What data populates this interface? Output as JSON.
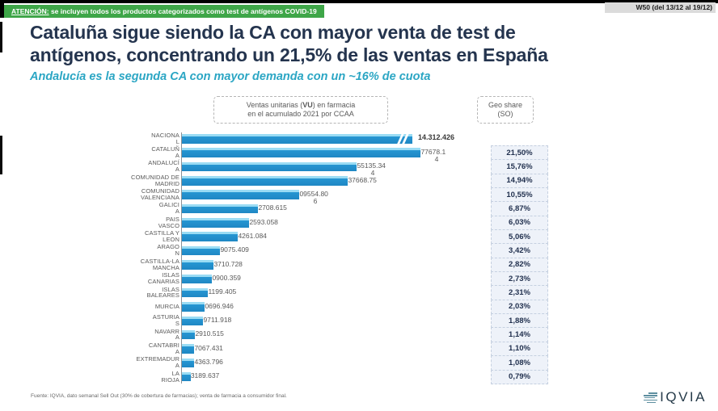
{
  "banner": {
    "prefix": "ATENCIÓN:",
    "text": " se incluyen todos los productos categorizados como test de antígenos COVID-19"
  },
  "week_badge": "W50 (del 13/12 al 19/12)",
  "title": "Cataluña sigue siendo la CA con mayor venta de test de antígenos, concentrando un 21,5% de las ventas en España",
  "subtitle": "Andalucía es la segunda CA con mayor demanda con un ~16% de cuota",
  "vu_box": {
    "line1_pre": "Ventas unitarias (",
    "line1_bold": "VU",
    "line1_post": ") en farmacia",
    "line2": "en el acumulado 2021 por CCAA"
  },
  "geo_box": {
    "line1": "Geo share",
    "line2": "(SO)"
  },
  "footer": {
    "source": "Fuente: IQVIA, dato semanal Sell Out (30% de cobertura de farmacias); venta de farmacia a consumidor final.",
    "logo_text": "IQVIA"
  },
  "colors": {
    "bar_main": "#2696D2",
    "bar_light": "#9ADCF4",
    "banner_green": "#3EA648",
    "subtitle_teal": "#2BA6C4",
    "title_navy": "#24344E",
    "geo_text": "#22314F"
  },
  "chart_data": {
    "type": "bar",
    "orientation": "horizontal",
    "title": "Ventas unitarias (VU) en farmacia en el acumulado 2021 por CCAA",
    "broken_axis_category": "NACIONAL",
    "categories": [
      "NACIONAL",
      "CATALUÑA",
      "ANDALUCÍA",
      "COMUNIDAD DE MADRID",
      "COMUNIDAD VALENCIANA",
      "GALICIA",
      "PAIS VASCO",
      "CASTILLA Y LEON",
      "ARAGON",
      "CASTILLA-LA MANCHA",
      "ISLAS CANARIAS",
      "ISLAS BALEARES",
      "MURCIA",
      "ASTURIAS",
      "NAVARRA",
      "CANTABRIA",
      "EXTREMADURA",
      "LA RIOJA"
    ],
    "values": [
      14312426,
      3077678.14,
      2255135.344,
      2137668.75,
      1509554.806,
      982708.615,
      862593.058,
      724261.084,
      489075.409,
      403710.728,
      390900.359,
      331199.405,
      290696.946,
      269711.918,
      162910.515,
      157067.431,
      154363.796,
      113189.637
    ],
    "label_lines": [
      [
        "NACIONA",
        "L"
      ],
      [
        "CATALUÑ",
        "A"
      ],
      [
        "ANDALUCÍ",
        "A"
      ],
      [
        "COMUNIDAD DE",
        "MADRID"
      ],
      [
        "COMUNIDAD",
        "VALENCIANA"
      ],
      [
        "GALICI",
        "A"
      ],
      [
        "PAIS",
        "VASCO"
      ],
      [
        "CASTILLA Y",
        "LEON"
      ],
      [
        "ARAGO",
        "N"
      ],
      [
        "CASTILLA-LA",
        "MANCHA"
      ],
      [
        "ISLAS",
        "CANARIAS"
      ],
      [
        "ISLAS",
        "BALEARES"
      ],
      [
        "MURCIA"
      ],
      [
        "ASTURIA",
        "S"
      ],
      [
        "NAVARR",
        "A"
      ],
      [
        "CANTABRI",
        "A"
      ],
      [
        "EXTREMADUR",
        "A"
      ],
      [
        "LA",
        "RIOJA"
      ]
    ],
    "value_labels": [
      [
        "14.312.426"
      ],
      [
        "3077678.1",
        "4"
      ],
      [
        "2255135.34",
        "4"
      ],
      [
        "2137668.75"
      ],
      [
        "1509554.80",
        "6"
      ],
      [
        "982708.615"
      ],
      [
        "862593.058"
      ],
      [
        "724261.084"
      ],
      [
        "489075.409"
      ],
      [
        "403710.728"
      ],
      [
        "390900.359"
      ],
      [
        "331199.405"
      ],
      [
        "290696.946"
      ],
      [
        "269711.918"
      ],
      [
        "162910.515"
      ],
      [
        "157067.431"
      ],
      [
        "154363.796"
      ],
      [
        "113189.637"
      ]
    ],
    "geo_share": {
      "label": "Geo share (SO)",
      "categories": [
        "CATALUÑA",
        "ANDALUCÍA",
        "COMUNIDAD DE MADRID",
        "COMUNIDAD VALENCIANA",
        "GALICIA",
        "PAIS VASCO",
        "CASTILLA Y LEON",
        "ARAGON",
        "CASTILLA-LA MANCHA",
        "ISLAS CANARIAS",
        "ISLAS BALEARES",
        "MURCIA",
        "ASTURIAS",
        "NAVARRA",
        "CANTABRIA",
        "EXTREMADURA",
        "LA RIOJA"
      ],
      "values": [
        "21,50%",
        "15,76%",
        "14,94%",
        "10,55%",
        "6,87%",
        "6,03%",
        "5,06%",
        "3,42%",
        "2,82%",
        "2,73%",
        "2,31%",
        "2,03%",
        "1,88%",
        "1,14%",
        "1,10%",
        "1,08%",
        "0,79%"
      ],
      "pct_values": [
        21.5,
        15.76,
        14.94,
        10.55,
        6.87,
        6.03,
        5.06,
        3.42,
        2.82,
        2.73,
        2.31,
        2.03,
        1.88,
        1.14,
        1.1,
        1.08,
        0.79
      ]
    }
  }
}
